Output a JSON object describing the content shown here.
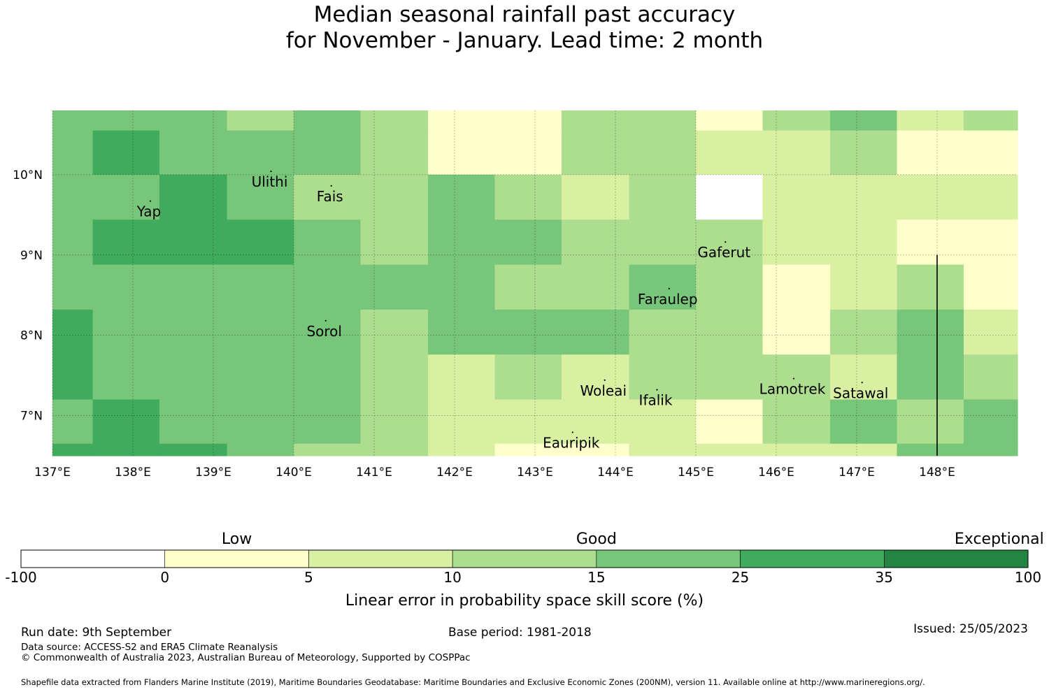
{
  "title": {
    "line1": "Median seasonal rainfall past accuracy",
    "line2": "for November - January. Lead time: 2 month"
  },
  "colors": {
    "c0": "#ffffff",
    "c1": "#ffffcc",
    "c2": "#d9f0a3",
    "c3": "#addd8e",
    "c4": "#78c679",
    "c5": "#41ab5d",
    "c6": "#238443"
  },
  "map": {
    "lon_range": [
      137,
      149
    ],
    "lat_range": [
      6.5,
      10.8
    ],
    "x_ticks": [
      {
        "value": 137,
        "label": "137°E"
      },
      {
        "value": 138,
        "label": "138°E"
      },
      {
        "value": 139,
        "label": "139°E"
      },
      {
        "value": 140,
        "label": "140°E"
      },
      {
        "value": 141,
        "label": "141°E"
      },
      {
        "value": 142,
        "label": "142°E"
      },
      {
        "value": 143,
        "label": "143°E"
      },
      {
        "value": 144,
        "label": "144°E"
      },
      {
        "value": 145,
        "label": "145°E"
      },
      {
        "value": 146,
        "label": "146°E"
      },
      {
        "value": 147,
        "label": "147°E"
      },
      {
        "value": 148,
        "label": "148°E"
      }
    ],
    "y_ticks": [
      {
        "value": 10,
        "label": "10°N"
      },
      {
        "value": 9,
        "label": "9°N"
      },
      {
        "value": 8,
        "label": "8°N"
      },
      {
        "value": 7,
        "label": "7°N"
      }
    ],
    "grid_lon_edges": [
      137.0,
      137.5,
      138.33,
      139.17,
      140.0,
      140.83,
      141.67,
      142.5,
      143.33,
      144.17,
      145.0,
      145.83,
      146.67,
      147.5,
      148.33,
      149.0
    ],
    "grid_lat_edges": [
      10.8,
      10.55,
      10.0,
      9.44,
      8.88,
      8.32,
      7.76,
      7.2,
      6.65,
      6.5
    ],
    "grid_classes": [
      [
        4,
        4,
        4,
        3,
        4,
        3,
        1,
        1,
        3,
        3,
        1,
        3,
        4,
        2,
        3
      ],
      [
        4,
        5,
        4,
        4,
        4,
        3,
        1,
        1,
        3,
        3,
        2,
        2,
        3,
        1,
        1
      ],
      [
        4,
        4,
        5,
        4,
        3,
        3,
        4,
        3,
        2,
        3,
        0,
        2,
        2,
        2,
        2
      ],
      [
        4,
        5,
        5,
        5,
        4,
        3,
        4,
        4,
        3,
        3,
        3,
        2,
        2,
        1,
        1
      ],
      [
        4,
        4,
        4,
        4,
        4,
        4,
        4,
        3,
        3,
        4,
        3,
        1,
        2,
        3,
        1
      ],
      [
        5,
        4,
        4,
        4,
        4,
        3,
        4,
        4,
        4,
        3,
        3,
        1,
        3,
        4,
        2
      ],
      [
        5,
        4,
        4,
        4,
        4,
        3,
        2,
        3,
        2,
        3,
        3,
        3,
        2,
        4,
        3
      ],
      [
        4,
        5,
        4,
        4,
        4,
        3,
        2,
        2,
        2,
        2,
        1,
        3,
        4,
        3,
        4
      ],
      [
        5,
        5,
        5,
        4,
        3,
        3,
        2,
        1,
        1,
        2,
        2,
        2,
        2,
        4,
        4
      ]
    ],
    "places": [
      {
        "name": "Ulithi",
        "lon": 139.7,
        "lat": 9.85
      },
      {
        "name": "Yap",
        "lon": 138.2,
        "lat": 9.48
      },
      {
        "name": "Fais",
        "lon": 140.45,
        "lat": 9.67
      },
      {
        "name": "Gaferut",
        "lon": 145.35,
        "lat": 8.97
      },
      {
        "name": "Faraulep",
        "lon": 144.65,
        "lat": 8.39
      },
      {
        "name": "Sorol",
        "lon": 140.38,
        "lat": 7.99
      },
      {
        "name": "Woleai",
        "lon": 143.85,
        "lat": 7.25
      },
      {
        "name": "Ifalik",
        "lon": 144.5,
        "lat": 7.13
      },
      {
        "name": "Lamotrek",
        "lon": 146.2,
        "lat": 7.27
      },
      {
        "name": "Satawal",
        "lon": 147.05,
        "lat": 7.22
      },
      {
        "name": "Eauripik",
        "lon": 143.45,
        "lat": 6.6
      }
    ],
    "boundary_line": {
      "lon": 148.0,
      "lat_from": 9.0,
      "lat_to": 6.5
    }
  },
  "colorbar": {
    "category_labels": [
      {
        "label": "Low",
        "position_value": 1.0
      },
      {
        "label": "Good",
        "position_value": 3.5
      },
      {
        "label": "Exceptional",
        "position_value": 6.3
      }
    ],
    "ticks": [
      "-100",
      "0",
      "5",
      "10",
      "15",
      "25",
      "35",
      "100"
    ],
    "title": "Linear error in probability space skill score (%)"
  },
  "footer": {
    "run_date": "Run date: 9th September",
    "base_period": "Base period: 1981-2018",
    "issued": "Issued: 25/05/2023",
    "data_source": "Data source: ACCESS-S2 and ERA5 Climate Reanalysis",
    "copyright": "© Commonwealth of Australia 2023, Australian Bureau of Meteorology, Supported by COSPPac",
    "shapefile": "Shapefile data extracted from Flanders Marine Institute (2019), Maritime Boundaries Geodatabase: Maritime Boundaries and Exclusive Economic Zones (200NM), version 11. Available online at http://www.marineregions.org/."
  }
}
